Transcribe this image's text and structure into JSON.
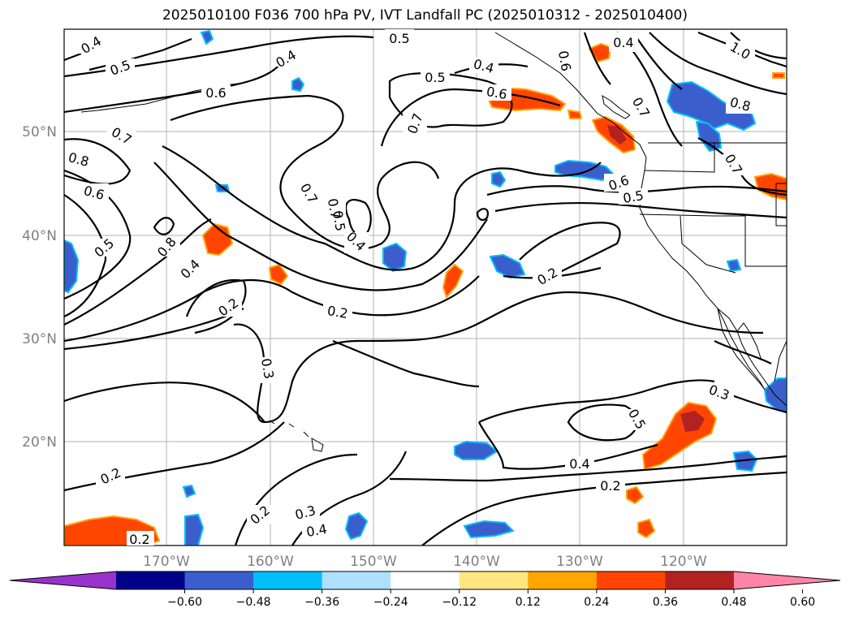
{
  "title": "2025010100 F036 700 hPa PV, IVT Landfall PC (2025010312 - 2025010400)",
  "lat_labels": [
    "50°N",
    "40°N",
    "30°N",
    "20°N"
  ],
  "lon_labels": [
    "170°W",
    "160°W",
    "150°W",
    "140°W",
    "130°W",
    "120°W"
  ],
  "contour_labels": [
    {
      "text": "0.4"
    },
    {
      "text": "0.5"
    },
    {
      "text": "0.5"
    },
    {
      "text": "0.4"
    },
    {
      "text": "0.5"
    },
    {
      "text": "0.4"
    },
    {
      "text": "0.6"
    },
    {
      "text": "0.6"
    },
    {
      "text": "0.7"
    },
    {
      "text": "0.7"
    },
    {
      "text": "0.7"
    },
    {
      "text": "0.8"
    },
    {
      "text": "0.6"
    },
    {
      "text": "0.5"
    },
    {
      "text": "0.8"
    },
    {
      "text": "0.7"
    },
    {
      "text": "0.5"
    },
    {
      "text": "0.4"
    },
    {
      "text": "0.4"
    },
    {
      "text": "0.2"
    },
    {
      "text": "0.2"
    },
    {
      "text": "0.3"
    },
    {
      "text": "0.2"
    },
    {
      "text": "0.6"
    },
    {
      "text": "0.5"
    },
    {
      "text": "0.7"
    },
    {
      "text": "0.8"
    },
    {
      "text": "1.0"
    },
    {
      "text": "0.7"
    },
    {
      "text": "0.3"
    },
    {
      "text": "0.5"
    },
    {
      "text": "0.4"
    },
    {
      "text": "0.2"
    },
    {
      "text": "0.2"
    },
    {
      "text": "0.2"
    },
    {
      "text": "0.3"
    },
    {
      "text": "0.4"
    },
    {
      "text": "0.2"
    },
    {
      "text": "0.6"
    },
    {
      "text": "0.4"
    }
  ],
  "colorbar": {
    "ticks": [
      "−0.60",
      "−0.48",
      "−0.36",
      "−0.24",
      "−0.12",
      "0.12",
      "0.24",
      "0.36",
      "0.48",
      "0.60"
    ],
    "colors": [
      "#9932cc",
      "#00008b",
      "#3a5fcd",
      "#00bfff",
      "#b0e0ff",
      "#ffffff",
      "#ffe680",
      "#ffa500",
      "#ff4500",
      "#b22222",
      "#ff85a8"
    ]
  },
  "shading_colors": {
    "negative_core": "#3a5fcd",
    "negative_edge": "#00bfff",
    "positive_core": "#ff4500",
    "positive_edge": "#ffa500",
    "positive_max": "#b22222"
  }
}
